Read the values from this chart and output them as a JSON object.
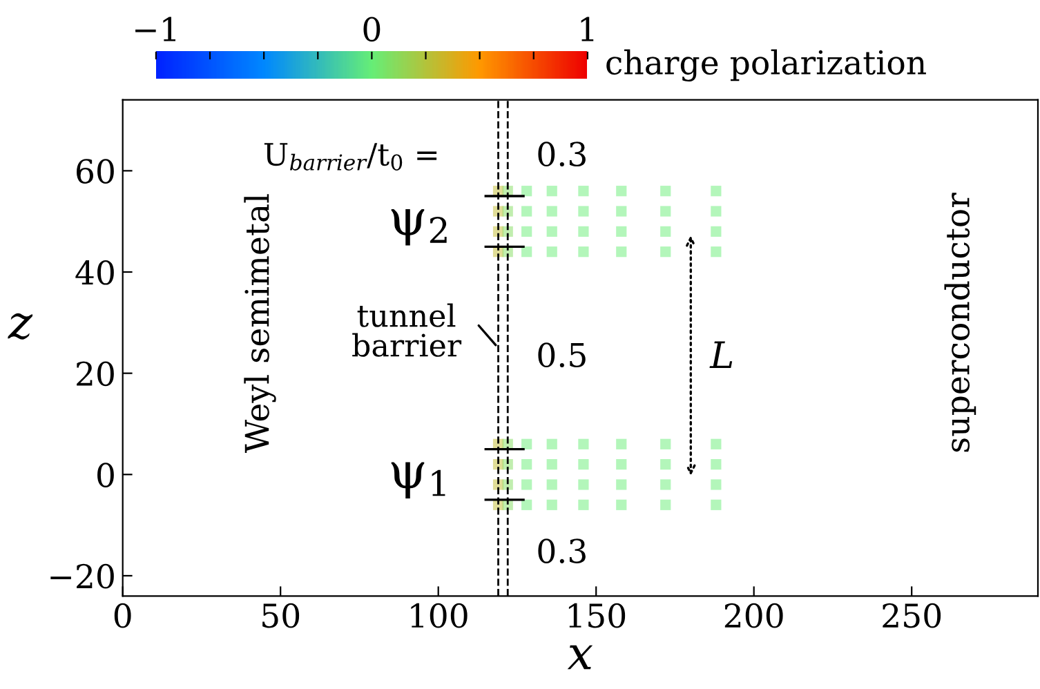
{
  "chart_data": {
    "type": "scatter",
    "xlabel": "x",
    "ylabel": "z",
    "clabel": "charge polarization",
    "x": [
      119,
      122,
      128,
      136,
      146,
      158,
      172,
      188,
      119,
      122,
      128,
      136,
      146,
      158,
      172,
      188,
      119,
      122,
      128,
      136,
      146,
      158,
      172,
      188,
      119,
      122,
      128,
      136,
      146,
      158,
      172,
      188,
      119,
      122,
      128,
      136,
      146,
      158,
      172,
      188,
      119,
      122,
      128,
      136,
      146,
      158,
      172,
      188,
      119,
      122,
      128,
      136,
      146,
      158,
      172,
      188,
      119,
      122,
      128,
      136,
      146,
      158,
      172,
      188
    ],
    "values": [
      -6,
      -6,
      -6,
      -6,
      -6,
      -6,
      -6,
      -6,
      -2,
      -2,
      -2,
      -2,
      -2,
      -2,
      -2,
      -2,
      2,
      2,
      2,
      2,
      2,
      2,
      2,
      2,
      6,
      6,
      6,
      6,
      6,
      6,
      6,
      6,
      44,
      44,
      44,
      44,
      44,
      44,
      44,
      44,
      48,
      48,
      48,
      48,
      48,
      48,
      48,
      48,
      52,
      52,
      52,
      52,
      52,
      52,
      52,
      52,
      56,
      56,
      56,
      56,
      56,
      56,
      56,
      56
    ],
    "cvalues": [
      0.3,
      0.1,
      0,
      0,
      0,
      0,
      0,
      0,
      0.3,
      0.1,
      0,
      0,
      0,
      0,
      0,
      0,
      0.3,
      0.1,
      0,
      0,
      0,
      0,
      0,
      0,
      0.3,
      0.1,
      0,
      0,
      0,
      0,
      0,
      0,
      0.3,
      0.1,
      0,
      0,
      0,
      0,
      0,
      0,
      0.3,
      0.1,
      0,
      0,
      0,
      0,
      0,
      0,
      0.3,
      0.1,
      0,
      0,
      0,
      0,
      0,
      0,
      0.3,
      0.1,
      0,
      0,
      0,
      0,
      0,
      0
    ],
    "clim": [
      -1,
      1
    ],
    "cticks": [
      -1,
      {
        "value": -0.75,
        "label": null
      },
      {
        "value": -0.5,
        "label": null
      },
      {
        "value": -0.25,
        "label": null
      },
      0,
      {
        "value": 0.25,
        "label": null
      },
      {
        "value": 0.5,
        "label": null
      },
      {
        "value": 0.75,
        "label": null
      },
      1
    ],
    "xlim": [
      0,
      290
    ],
    "xticks": [
      0,
      50,
      100,
      150,
      200,
      250
    ],
    "ylim": [
      -24,
      74
    ],
    "yticks": [
      -20,
      0,
      20,
      40,
      60
    ],
    "ref_lines": [
      {
        "axis": "x",
        "value": 119,
        "line_style": "dashed",
        "color": "#000000"
      },
      {
        "axis": "x",
        "value": 122,
        "line_style": "dashed",
        "color": "#000000"
      }
    ],
    "annotations": [
      "U$_{barrier}$/t$_{0}$ =",
      "0.3",
      "0.5",
      "0.3",
      {
        "text": "ψ$_{2}$",
        "x": 120,
        "y": 50
      },
      {
        "text": "ψ$_{1}$",
        "x": 120,
        "y": 0
      },
      "Weyl semimetal",
      "superconductor",
      "tunnel\nbarrier",
      "L"
    ],
    "marker": "square",
    "grid": false,
    "legend": false
  }
}
